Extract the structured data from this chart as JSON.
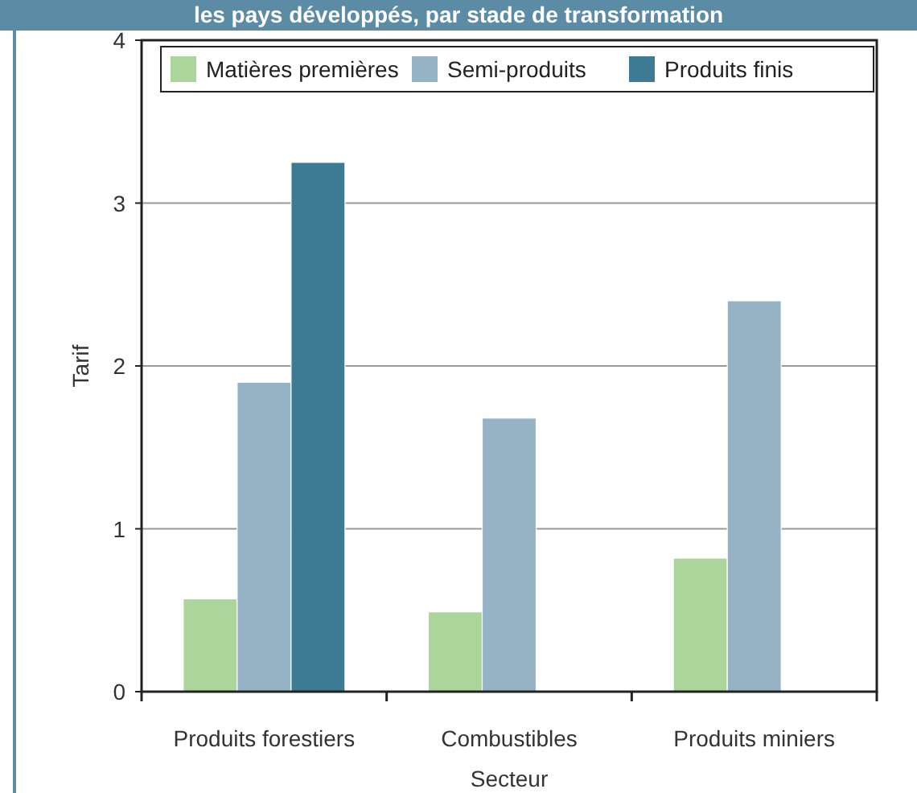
{
  "chart_data": {
    "type": "bar",
    "title": "les pays développés, par stade de transformation",
    "xlabel": "Secteur",
    "ylabel": "Tarif",
    "categories": [
      "Produits forestiers",
      "Combustibles",
      "Produits miniers"
    ],
    "series": [
      {
        "name": "Matières premières",
        "color": "#abd59b",
        "values": [
          0.57,
          0.49,
          0.82
        ]
      },
      {
        "name": "Semi-produits",
        "color": "#96b3c5",
        "values": [
          1.9,
          1.68,
          2.4
        ]
      },
      {
        "name": "Produits finis",
        "color": "#3d7a94",
        "values": [
          3.25,
          null,
          null
        ]
      }
    ],
    "ylim": [
      0,
      4
    ],
    "yticks": [
      0,
      1,
      2,
      3,
      4
    ],
    "grid": "y",
    "legend": "top"
  }
}
